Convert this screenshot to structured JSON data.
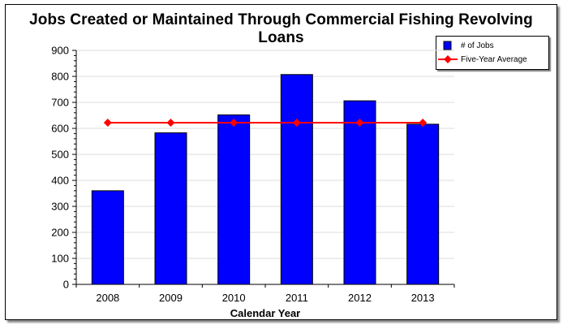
{
  "chart_data": {
    "type": "bar",
    "title": "Jobs Created or Maintained Through Commercial Fishing Revolving Loans",
    "xlabel": "Calendar Year",
    "ylabel": "",
    "categories": [
      "2008",
      "2009",
      "2010",
      "2011",
      "2012",
      "2013"
    ],
    "series": [
      {
        "name": "# of Jobs",
        "type": "bar",
        "color": "#0000ff",
        "values": [
          360,
          583,
          652,
          807,
          706,
          616
        ]
      },
      {
        "name": "Five-Year Average",
        "type": "line",
        "color": "#ff0000",
        "marker": "diamond",
        "values": [
          622,
          622,
          622,
          622,
          622,
          622
        ]
      }
    ],
    "ylim": [
      0,
      900
    ],
    "yticks": [
      0,
      100,
      200,
      300,
      400,
      500,
      600,
      700,
      800,
      900
    ],
    "grid": true,
    "legend_position": "top-right"
  },
  "legend": {
    "bar_label": "# of Jobs",
    "line_label": "Five-Year Average"
  }
}
